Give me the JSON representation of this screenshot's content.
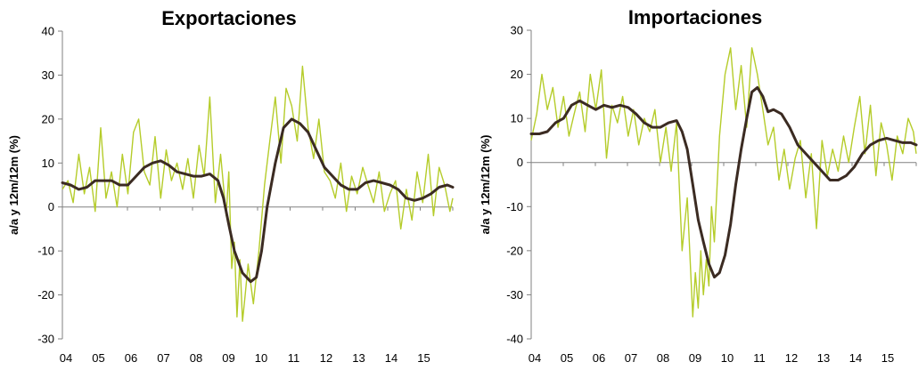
{
  "chart_data": [
    {
      "type": "line",
      "title": "Exportaciones",
      "ylabel": "a/a y 12m/12m (%)",
      "xlabel": "",
      "ylim": [
        -30,
        40
      ],
      "yticks": [
        -30,
        -20,
        -10,
        0,
        10,
        20,
        30,
        40
      ],
      "x_tick_labels": [
        "04",
        "05",
        "06",
        "07",
        "08",
        "09",
        "10",
        "11",
        "12",
        "13",
        "14",
        "15"
      ],
      "x_range": [
        2004.0,
        2015.917
      ],
      "grid": false,
      "colors": {
        "monthly": "#b5cc2a",
        "trend": "#3b2b22"
      },
      "series": [
        {
          "key": "monthly",
          "x": [
            2004.0,
            2004.17,
            2004.33,
            2004.5,
            2004.67,
            2004.83,
            2005.0,
            2005.17,
            2005.33,
            2005.5,
            2005.67,
            2005.83,
            2006.0,
            2006.17,
            2006.33,
            2006.5,
            2006.67,
            2006.83,
            2007.0,
            2007.17,
            2007.33,
            2007.5,
            2007.67,
            2007.83,
            2008.0,
            2008.17,
            2008.33,
            2008.5,
            2008.67,
            2008.83,
            2009.0,
            2009.08,
            2009.17,
            2009.25,
            2009.33,
            2009.42,
            2009.5,
            2009.58,
            2009.67,
            2009.83,
            2010.0,
            2010.17,
            2010.33,
            2010.5,
            2010.67,
            2010.83,
            2011.0,
            2011.17,
            2011.33,
            2011.5,
            2011.67,
            2011.83,
            2012.0,
            2012.17,
            2012.33,
            2012.5,
            2012.67,
            2012.83,
            2013.0,
            2013.17,
            2013.33,
            2013.5,
            2013.67,
            2013.83,
            2014.0,
            2014.17,
            2014.33,
            2014.5,
            2014.67,
            2014.83,
            2015.0,
            2015.17,
            2015.33,
            2015.5,
            2015.67,
            2015.83,
            2015.917
          ],
          "y": [
            4,
            6,
            1,
            12,
            3,
            9,
            -1,
            18,
            2,
            8,
            0,
            12,
            3,
            17,
            20,
            8,
            5,
            16,
            2,
            13,
            6,
            10,
            4,
            11,
            2,
            14,
            7,
            25,
            1,
            12,
            -2,
            8,
            -14,
            -8,
            -25,
            -12,
            -26,
            -20,
            -13,
            -22,
            -10,
            5,
            15,
            25,
            10,
            27,
            23,
            15,
            32,
            18,
            11,
            20,
            8,
            6,
            2,
            10,
            -1,
            7,
            3,
            9,
            5,
            1,
            8,
            -1,
            3,
            6,
            -5,
            4,
            -3,
            8,
            1,
            12,
            -2,
            9,
            5,
            -1,
            2
          ]
        },
        {
          "key": "trend",
          "x": [
            2004.0,
            2004.25,
            2004.5,
            2004.75,
            2005.0,
            2005.25,
            2005.5,
            2005.75,
            2006.0,
            2006.25,
            2006.5,
            2006.75,
            2007.0,
            2007.25,
            2007.5,
            2007.75,
            2008.0,
            2008.25,
            2008.5,
            2008.75,
            2008.92,
            2009.08,
            2009.25,
            2009.5,
            2009.75,
            2009.92,
            2010.08,
            2010.25,
            2010.5,
            2010.75,
            2011.0,
            2011.25,
            2011.5,
            2011.75,
            2012.0,
            2012.25,
            2012.5,
            2012.75,
            2013.0,
            2013.25,
            2013.5,
            2013.75,
            2014.0,
            2014.25,
            2014.5,
            2014.75,
            2015.0,
            2015.25,
            2015.5,
            2015.75,
            2015.917
          ],
          "y": [
            5.5,
            5,
            4,
            4.5,
            6,
            6,
            6,
            5,
            5,
            7,
            9,
            10,
            10.5,
            9.5,
            8,
            7.5,
            7,
            7,
            7.5,
            6,
            2,
            -4,
            -10,
            -15,
            -17,
            -16,
            -10,
            0,
            10,
            18,
            20,
            19,
            17,
            13,
            9,
            7,
            5,
            4,
            4,
            5.5,
            6,
            5.5,
            5,
            4,
            2,
            1.5,
            2,
            3,
            4.5,
            5,
            4.5
          ]
        }
      ]
    },
    {
      "type": "line",
      "title": "Importaciones",
      "ylabel": "a/a y 12m/12m (%)",
      "xlabel": "",
      "ylim": [
        -40,
        30
      ],
      "yticks": [
        -40,
        -30,
        -20,
        -10,
        0,
        10,
        20,
        30
      ],
      "x_tick_labels": [
        "04",
        "05",
        "06",
        "07",
        "08",
        "09",
        "10",
        "11",
        "12",
        "13",
        "14",
        "15"
      ],
      "x_range": [
        2004.0,
        2015.917
      ],
      "grid": false,
      "colors": {
        "monthly": "#b5cc2a",
        "trend": "#3b2b22"
      },
      "series": [
        {
          "key": "monthly",
          "x": [
            2004.0,
            2004.17,
            2004.33,
            2004.5,
            2004.67,
            2004.83,
            2005.0,
            2005.17,
            2005.33,
            2005.5,
            2005.67,
            2005.83,
            2006.0,
            2006.17,
            2006.33,
            2006.5,
            2006.67,
            2006.83,
            2007.0,
            2007.17,
            2007.33,
            2007.5,
            2007.67,
            2007.83,
            2008.0,
            2008.17,
            2008.33,
            2008.5,
            2008.67,
            2008.83,
            2009.0,
            2009.08,
            2009.17,
            2009.25,
            2009.33,
            2009.42,
            2009.5,
            2009.58,
            2009.67,
            2009.83,
            2010.0,
            2010.17,
            2010.33,
            2010.5,
            2010.67,
            2010.83,
            2011.0,
            2011.17,
            2011.33,
            2011.5,
            2011.67,
            2011.83,
            2012.0,
            2012.17,
            2012.33,
            2012.5,
            2012.67,
            2012.83,
            2013.0,
            2013.17,
            2013.33,
            2013.5,
            2013.67,
            2013.83,
            2014.0,
            2014.17,
            2014.33,
            2014.5,
            2014.67,
            2014.83,
            2015.0,
            2015.17,
            2015.33,
            2015.5,
            2015.67,
            2015.83,
            2015.917
          ],
          "y": [
            5,
            11,
            20,
            12,
            17,
            8,
            15,
            6,
            11,
            16,
            7,
            20,
            12,
            21,
            1,
            13,
            9,
            15,
            6,
            12,
            4,
            10,
            7,
            12,
            0,
            8,
            -2,
            9,
            -20,
            -8,
            -35,
            -25,
            -33,
            -20,
            -30,
            -22,
            -28,
            -10,
            -18,
            6,
            20,
            26,
            12,
            22,
            8,
            26,
            20,
            12,
            4,
            8,
            -4,
            3,
            -6,
            1,
            5,
            -8,
            2,
            -15,
            5,
            -3,
            3,
            -2,
            6,
            0,
            8,
            15,
            2,
            13,
            -3,
            9,
            4,
            -4,
            6,
            2,
            10,
            7,
            2
          ]
        },
        {
          "key": "trend",
          "x": [
            2004.0,
            2004.25,
            2004.5,
            2004.75,
            2005.0,
            2005.25,
            2005.5,
            2005.75,
            2006.0,
            2006.25,
            2006.5,
            2006.75,
            2007.0,
            2007.25,
            2007.5,
            2007.75,
            2008.0,
            2008.25,
            2008.5,
            2008.67,
            2008.83,
            2009.0,
            2009.17,
            2009.33,
            2009.5,
            2009.67,
            2009.83,
            2010.0,
            2010.17,
            2010.33,
            2010.5,
            2010.67,
            2010.83,
            2011.0,
            2011.17,
            2011.33,
            2011.5,
            2011.75,
            2012.0,
            2012.25,
            2012.5,
            2012.75,
            2013.0,
            2013.25,
            2013.5,
            2013.75,
            2014.0,
            2014.25,
            2014.5,
            2014.75,
            2015.0,
            2015.25,
            2015.5,
            2015.75,
            2015.917
          ],
          "y": [
            6.5,
            6.5,
            7,
            9,
            10,
            13,
            14,
            13,
            12,
            13,
            12.5,
            13,
            12.5,
            11,
            9,
            8,
            8,
            9,
            9.5,
            7,
            3,
            -5,
            -13,
            -18,
            -23,
            -26,
            -25,
            -21,
            -14,
            -5,
            3,
            10,
            16,
            17,
            15,
            11.5,
            12,
            11,
            8,
            4,
            2,
            0,
            -2,
            -4,
            -4,
            -3,
            -1,
            2,
            4,
            5,
            5.5,
            5,
            4.5,
            4.5,
            4
          ]
        }
      ]
    }
  ]
}
